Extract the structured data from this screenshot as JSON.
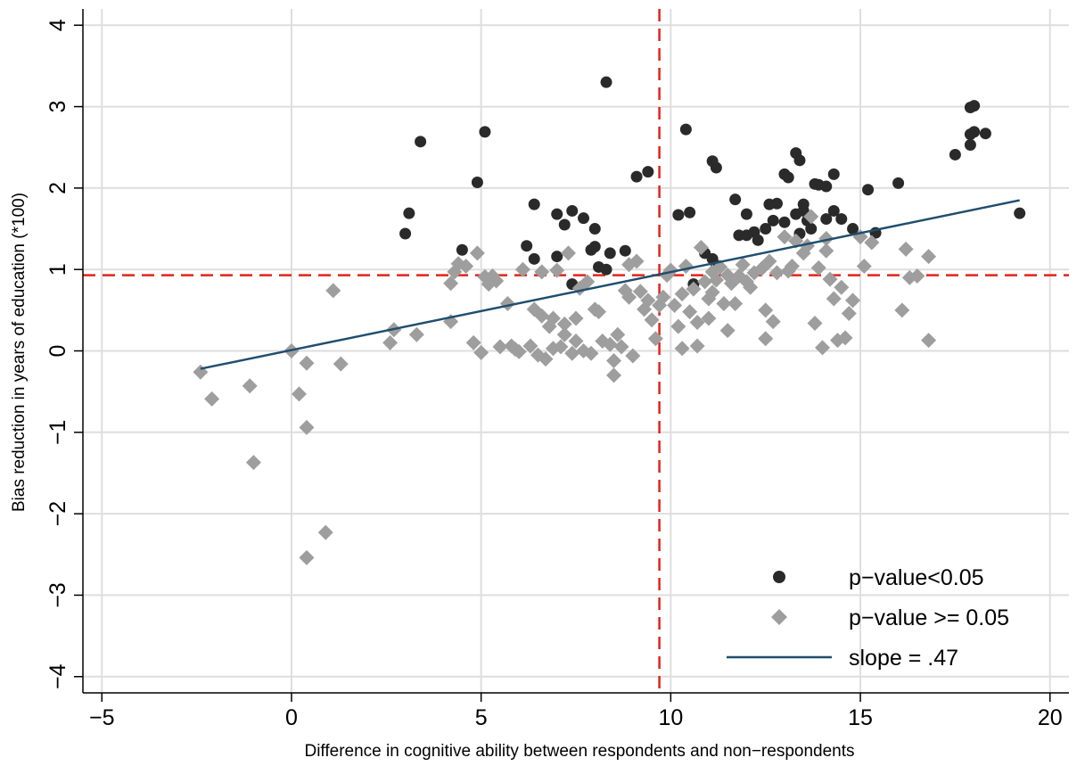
{
  "chart_data": {
    "type": "scatter",
    "title": "",
    "xlabel": "Difference in cognitive ability between respondents and non−respondents",
    "ylabel": "Bias reduction in years of education (*100)",
    "xlim": [
      -5.5,
      20.5
    ],
    "ylim": [
      -4.2,
      4.2
    ],
    "x_ticks": [
      -5,
      0,
      5,
      10,
      15,
      20
    ],
    "x_tick_labels": [
      "−5",
      "0",
      "5",
      "10",
      "15",
      "20"
    ],
    "y_ticks": [
      -4,
      -3,
      -2,
      -1,
      0,
      1,
      2,
      3,
      4
    ],
    "y_tick_labels": [
      "−4",
      "−3",
      "−2",
      "−1",
      "0",
      "1",
      "2",
      "3",
      "4"
    ],
    "grid": true,
    "legend_position": "bottom-right",
    "reference_lines": {
      "vertical_x": 9.7,
      "horizontal_y": 0.93,
      "color": "#e0251b",
      "style": "dashed"
    },
    "fit_line": {
      "name": "slope = .47",
      "x": [
        -2.4,
        19.2
      ],
      "y": [
        -0.22,
        1.85
      ],
      "color": "#1f4e6e"
    },
    "series": [
      {
        "name": "p−value<0.05",
        "marker": "circle",
        "color": "#2a2a2a",
        "points": [
          [
            3.0,
            1.44
          ],
          [
            3.1,
            1.69
          ],
          [
            3.4,
            2.57
          ],
          [
            4.5,
            1.24
          ],
          [
            4.9,
            2.07
          ],
          [
            5.1,
            2.69
          ],
          [
            6.2,
            1.29
          ],
          [
            6.4,
            1.8
          ],
          [
            6.4,
            1.13
          ],
          [
            7.0,
            1.68
          ],
          [
            7.0,
            1.16
          ],
          [
            7.2,
            1.55
          ],
          [
            7.4,
            1.72
          ],
          [
            7.4,
            0.82
          ],
          [
            7.7,
            1.63
          ],
          [
            7.9,
            1.24
          ],
          [
            8.0,
            1.5
          ],
          [
            8.0,
            1.28
          ],
          [
            8.1,
            1.03
          ],
          [
            8.3,
            3.3
          ],
          [
            8.3,
            1.0
          ],
          [
            8.4,
            1.2
          ],
          [
            8.8,
            1.23
          ],
          [
            9.1,
            2.14
          ],
          [
            9.4,
            2.2
          ],
          [
            10.2,
            1.67
          ],
          [
            10.4,
            2.72
          ],
          [
            10.5,
            1.7
          ],
          [
            11.1,
            2.33
          ],
          [
            11.2,
            2.25
          ],
          [
            10.6,
            0.82
          ],
          [
            10.9,
            1.2
          ],
          [
            11.1,
            1.13
          ],
          [
            11.2,
            1.05
          ],
          [
            11.7,
            1.86
          ],
          [
            11.8,
            1.42
          ],
          [
            12.0,
            1.68
          ],
          [
            12.0,
            1.42
          ],
          [
            12.2,
            1.46
          ],
          [
            12.3,
            1.36
          ],
          [
            12.5,
            1.5
          ],
          [
            12.6,
            1.8
          ],
          [
            12.7,
            1.6
          ],
          [
            12.8,
            1.81
          ],
          [
            13.0,
            1.58
          ],
          [
            13.0,
            2.17
          ],
          [
            13.1,
            2.13
          ],
          [
            13.3,
            2.43
          ],
          [
            13.3,
            1.68
          ],
          [
            13.4,
            2.34
          ],
          [
            13.4,
            1.44
          ],
          [
            13.5,
            1.8
          ],
          [
            13.5,
            1.72
          ],
          [
            13.6,
            1.6
          ],
          [
            13.7,
            1.5
          ],
          [
            13.8,
            2.05
          ],
          [
            13.9,
            2.04
          ],
          [
            14.1,
            2.02
          ],
          [
            14.1,
            1.62
          ],
          [
            14.3,
            2.17
          ],
          [
            14.3,
            1.72
          ],
          [
            14.5,
            1.62
          ],
          [
            14.8,
            1.5
          ],
          [
            15.2,
            1.98
          ],
          [
            15.4,
            1.45
          ],
          [
            16.0,
            2.06
          ],
          [
            17.5,
            2.41
          ],
          [
            17.9,
            2.53
          ],
          [
            17.9,
            2.66
          ],
          [
            18.0,
            2.69
          ],
          [
            17.9,
            2.99
          ],
          [
            18.0,
            3.01
          ],
          [
            18.3,
            2.67
          ],
          [
            19.2,
            1.69
          ]
        ]
      },
      {
        "name": "p−value >= 0.05",
        "marker": "diamond",
        "color": "#9e9e9e",
        "points": [
          [
            -2.4,
            -0.26
          ],
          [
            -2.1,
            -0.59
          ],
          [
            -1.1,
            -0.43
          ],
          [
            -1.0,
            -1.37
          ],
          [
            0.0,
            0.0
          ],
          [
            0.2,
            -0.53
          ],
          [
            0.4,
            -0.15
          ],
          [
            0.4,
            -0.94
          ],
          [
            0.4,
            -2.54
          ],
          [
            0.9,
            -2.23
          ],
          [
            1.1,
            0.74
          ],
          [
            1.3,
            -0.16
          ],
          [
            2.6,
            0.1
          ],
          [
            2.7,
            0.26
          ],
          [
            3.3,
            0.2
          ],
          [
            4.2,
            0.36
          ],
          [
            4.2,
            0.83
          ],
          [
            4.3,
            0.97
          ],
          [
            4.4,
            1.07
          ],
          [
            4.6,
            1.04
          ],
          [
            4.8,
            0.1
          ],
          [
            4.9,
            1.2
          ],
          [
            5.0,
            -0.02
          ],
          [
            5.1,
            0.91
          ],
          [
            5.2,
            0.82
          ],
          [
            5.3,
            0.92
          ],
          [
            5.4,
            0.86
          ],
          [
            5.5,
            0.05
          ],
          [
            5.7,
            0.58
          ],
          [
            5.8,
            0.06
          ],
          [
            5.9,
            0.02
          ],
          [
            6.0,
            -0.01
          ],
          [
            6.1,
            1.0
          ],
          [
            6.3,
            0.06
          ],
          [
            6.4,
            0.51
          ],
          [
            6.5,
            -0.05
          ],
          [
            6.6,
            0.97
          ],
          [
            6.6,
            0.43
          ],
          [
            6.7,
            -0.1
          ],
          [
            6.8,
            0.3
          ],
          [
            6.9,
            0.4
          ],
          [
            6.9,
            0.03
          ],
          [
            7.0,
            0.99
          ],
          [
            7.1,
            0.05
          ],
          [
            7.2,
            0.2
          ],
          [
            7.2,
            0.33
          ],
          [
            7.3,
            1.2
          ],
          [
            7.4,
            -0.03
          ],
          [
            7.5,
            0.12
          ],
          [
            7.5,
            0.4
          ],
          [
            7.6,
            0.77
          ],
          [
            7.7,
            0.0
          ],
          [
            7.8,
            0.85
          ],
          [
            7.9,
            -0.03
          ],
          [
            8.0,
            0.51
          ],
          [
            8.1,
            0.48
          ],
          [
            8.2,
            0.12
          ],
          [
            8.4,
            0.08
          ],
          [
            8.5,
            -0.3
          ],
          [
            8.5,
            -0.12
          ],
          [
            8.6,
            0.2
          ],
          [
            8.7,
            0.05
          ],
          [
            8.8,
            0.74
          ],
          [
            8.9,
            0.66
          ],
          [
            8.9,
            1.06
          ],
          [
            9.0,
            -0.06
          ],
          [
            9.1,
            1.1
          ],
          [
            9.2,
            0.73
          ],
          [
            9.3,
            0.51
          ],
          [
            9.4,
            0.62
          ],
          [
            9.5,
            0.38
          ],
          [
            9.6,
            0.15
          ],
          [
            9.7,
            0.56
          ],
          [
            9.8,
            0.66
          ],
          [
            9.9,
            0.93
          ],
          [
            10.0,
            0.99
          ],
          [
            10.1,
            0.56
          ],
          [
            10.2,
            0.3
          ],
          [
            10.3,
            0.7
          ],
          [
            10.3,
            0.03
          ],
          [
            10.4,
            1.04
          ],
          [
            10.5,
            0.48
          ],
          [
            10.6,
            0.76
          ],
          [
            10.7,
            0.06
          ],
          [
            10.7,
            0.35
          ],
          [
            10.8,
            1.27
          ],
          [
            10.9,
            0.85
          ],
          [
            11.0,
            0.64
          ],
          [
            11.0,
            0.4
          ],
          [
            11.1,
            0.97
          ],
          [
            11.1,
            0.72
          ],
          [
            11.2,
            0.87
          ],
          [
            11.3,
            1.03
          ],
          [
            11.4,
            0.58
          ],
          [
            11.5,
            0.93
          ],
          [
            11.5,
            0.25
          ],
          [
            11.6,
            0.83
          ],
          [
            11.7,
            0.58
          ],
          [
            11.8,
            0.92
          ],
          [
            11.9,
            1.06
          ],
          [
            12.0,
            0.85
          ],
          [
            12.1,
            0.78
          ],
          [
            12.2,
            0.96
          ],
          [
            12.4,
            1.01
          ],
          [
            12.5,
            0.5
          ],
          [
            12.5,
            0.15
          ],
          [
            12.6,
            1.1
          ],
          [
            12.7,
            0.36
          ],
          [
            12.8,
            0.96
          ],
          [
            13.0,
            1.4
          ],
          [
            13.1,
            0.98
          ],
          [
            13.2,
            1.04
          ],
          [
            13.3,
            1.35
          ],
          [
            13.5,
            1.2
          ],
          [
            13.6,
            1.29
          ],
          [
            13.7,
            1.65
          ],
          [
            13.8,
            0.34
          ],
          [
            13.9,
            1.02
          ],
          [
            14.0,
            0.04
          ],
          [
            14.1,
            1.38
          ],
          [
            14.1,
            1.23
          ],
          [
            14.2,
            0.88
          ],
          [
            14.3,
            0.64
          ],
          [
            14.4,
            0.13
          ],
          [
            14.5,
            0.78
          ],
          [
            14.6,
            0.16
          ],
          [
            14.7,
            0.46
          ],
          [
            14.8,
            0.62
          ],
          [
            15.0,
            1.4
          ],
          [
            15.1,
            1.04
          ],
          [
            15.3,
            1.33
          ],
          [
            16.1,
            0.5
          ],
          [
            16.2,
            1.25
          ],
          [
            16.3,
            0.9
          ],
          [
            16.5,
            0.92
          ],
          [
            16.8,
            1.16
          ],
          [
            16.8,
            0.13
          ]
        ]
      }
    ]
  }
}
